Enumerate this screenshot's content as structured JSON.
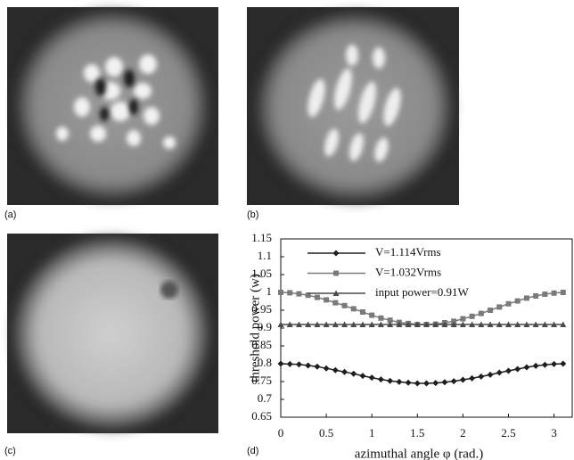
{
  "panel_labels": [
    "(a)",
    "(b)",
    "(c)",
    "(d)"
  ],
  "chart_data": {
    "type": "line",
    "xlabel": "azimuthal angle φ (rad.)",
    "ylabel": "threshold power (w)",
    "x": [
      0,
      0.1,
      0.2,
      0.3,
      0.4,
      0.5,
      0.6,
      0.7,
      0.8,
      0.9,
      1.0,
      1.1,
      1.2,
      1.3,
      1.4,
      1.5,
      1.6,
      1.7,
      1.8,
      1.9,
      2.0,
      2.1,
      2.2,
      2.3,
      2.4,
      2.5,
      2.6,
      2.7,
      2.8,
      2.9,
      3.0,
      3.1
    ],
    "series": [
      {
        "name": "V=1.114Vrms",
        "color": "#1e1e1e",
        "marker": "diamond",
        "values": [
          0.8,
          0.799,
          0.798,
          0.795,
          0.792,
          0.787,
          0.782,
          0.777,
          0.772,
          0.766,
          0.761,
          0.756,
          0.752,
          0.749,
          0.747,
          0.745,
          0.745,
          0.746,
          0.748,
          0.751,
          0.755,
          0.759,
          0.764,
          0.769,
          0.775,
          0.78,
          0.785,
          0.79,
          0.794,
          0.797,
          0.799,
          0.8
        ]
      },
      {
        "name": "V=1.032Vrms",
        "color": "#7a7a7a",
        "marker": "square",
        "values": [
          1.0,
          0.999,
          0.996,
          0.992,
          0.986,
          0.979,
          0.971,
          0.963,
          0.954,
          0.945,
          0.936,
          0.928,
          0.922,
          0.916,
          0.913,
          0.91,
          0.91,
          0.911,
          0.915,
          0.919,
          0.926,
          0.933,
          0.941,
          0.95,
          0.959,
          0.968,
          0.976,
          0.984,
          0.99,
          0.995,
          0.998,
          1.0
        ]
      },
      {
        "name": "input power=0.91W",
        "color": "#4a4a4a",
        "marker": "triangle",
        "values": [
          0.91,
          0.91,
          0.91,
          0.91,
          0.91,
          0.91,
          0.91,
          0.91,
          0.91,
          0.91,
          0.91,
          0.91,
          0.91,
          0.91,
          0.91,
          0.91,
          0.91,
          0.91,
          0.91,
          0.91,
          0.91,
          0.91,
          0.91,
          0.91,
          0.91,
          0.91,
          0.91,
          0.91,
          0.91,
          0.91,
          0.91,
          0.91
        ]
      }
    ],
    "xlim": [
      0,
      3.2
    ],
    "xticks": [
      0,
      0.5,
      1,
      1.5,
      2,
      2.5,
      3
    ],
    "ylim": [
      0.65,
      1.15
    ],
    "yticks": [
      0.65,
      0.7,
      0.75,
      0.8,
      0.85,
      0.9,
      0.95,
      1,
      1.05,
      1.1,
      1.15
    ],
    "grid": false
  }
}
